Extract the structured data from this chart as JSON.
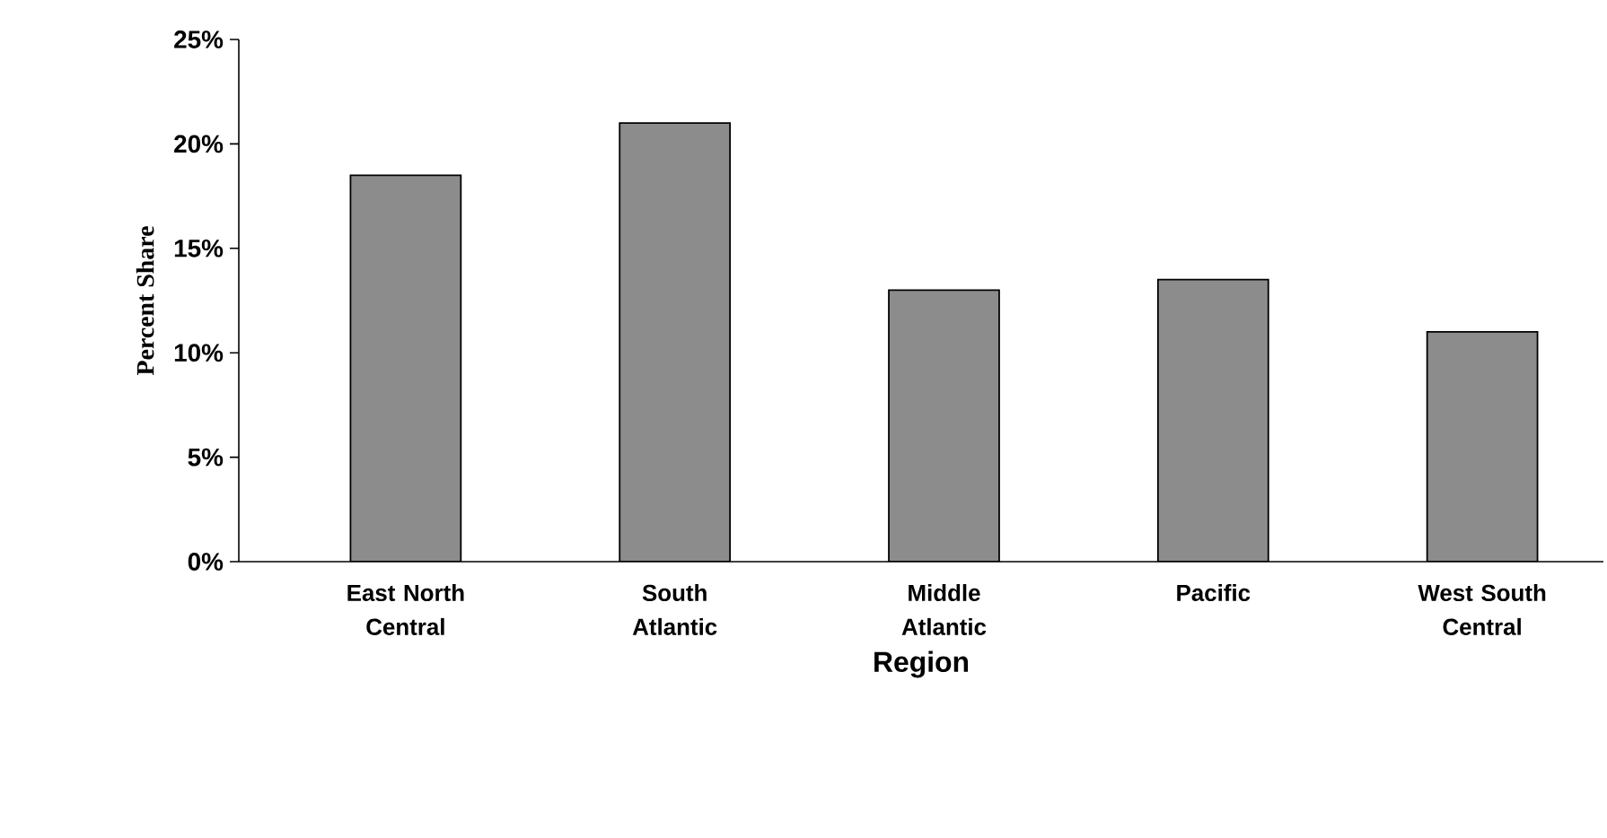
{
  "chart_data": {
    "type": "bar",
    "categories": [
      "East North Central",
      "South Atlantic",
      "Middle Atlantic",
      "Pacific",
      "West South Central"
    ],
    "values": [
      18.5,
      21,
      13,
      13.5,
      11
    ],
    "color": "#8c8c8c",
    "xlabel": "Region",
    "ylabel": "Percent Share",
    "ylim": [
      0,
      25
    ],
    "yticks": [
      {
        "value": 0,
        "label": "0%"
      },
      {
        "value": 5,
        "label": "5%"
      },
      {
        "value": 10,
        "label": "10%"
      },
      {
        "value": 15,
        "label": "15%"
      },
      {
        "value": 20,
        "label": "20%"
      },
      {
        "value": 25,
        "label": "25%"
      }
    ],
    "grid": false
  }
}
